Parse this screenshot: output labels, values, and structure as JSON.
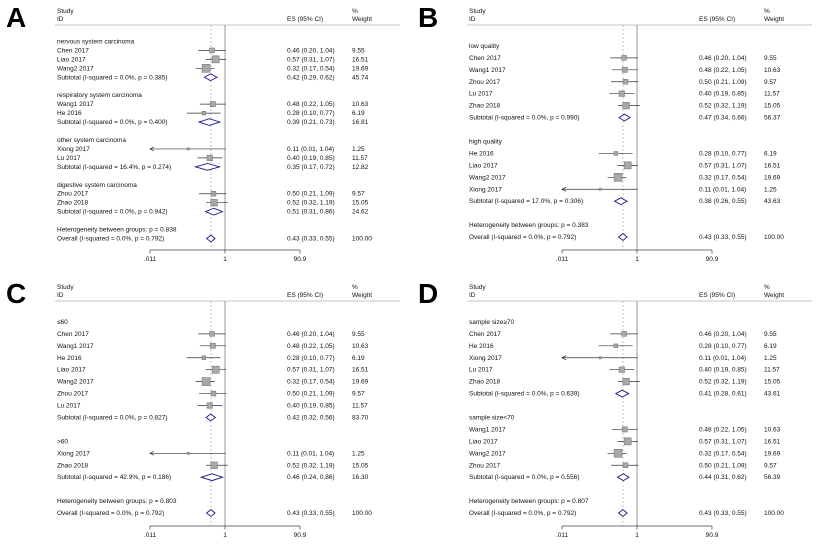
{
  "style": {
    "diamond_stroke": "#1a1a8c",
    "square_fill": "#a8a8a8",
    "square_stroke": "#6e6e6e",
    "ci_line": "#333333",
    "axis_line": "#444444",
    "dashed_line": "#999999",
    "text_color": "#111111",
    "background": "#ffffff"
  },
  "chart_data": [
    {
      "type": "forest",
      "label": "A",
      "columns": {
        "study_line1": "Study",
        "study_line2": "ID",
        "es": "ES (95% CI)",
        "pct": "%",
        "weight": "Weight"
      },
      "axis": {
        "tick_labels": [
          ".011",
          "1",
          "90.9"
        ],
        "tick_values": [
          0.011,
          1,
          90.9
        ],
        "min": 0.011,
        "max": 90.9,
        "null_line": 1,
        "overall_dashed_at": 0.43,
        "log_scale": true
      },
      "rows": [
        {
          "type": "gap"
        },
        {
          "type": "group",
          "label": "nervous system carcinoma"
        },
        {
          "type": "study",
          "label": "Chen 2017",
          "es": 0.46,
          "lo": 0.2,
          "hi": 1.04,
          "ci_text": "0.46 (0.20, 1.04)",
          "weight": 9.55,
          "weight_text": "9.55"
        },
        {
          "type": "study",
          "label": "Liao 2017",
          "es": 0.57,
          "lo": 0.31,
          "hi": 1.07,
          "ci_text": "0.57 (0.31, 1.07)",
          "weight": 16.51,
          "weight_text": "16.51"
        },
        {
          "type": "study",
          "label": "Wang2 2017",
          "es": 0.32,
          "lo": 0.17,
          "hi": 0.54,
          "ci_text": "0.32 (0.17, 0.54)",
          "weight": 19.69,
          "weight_text": "19.69"
        },
        {
          "type": "subtotal",
          "label": "Subtotal  (I-squared = 0.0%, p = 0.385)",
          "es": 0.42,
          "lo": 0.29,
          "hi": 0.62,
          "ci_text": "0.42 (0.29, 0.62)",
          "weight_text": "45.74"
        },
        {
          "type": "gap"
        },
        {
          "type": "group",
          "label": "respiratory system carcinoma"
        },
        {
          "type": "study",
          "label": "Wang1 2017",
          "es": 0.48,
          "lo": 0.22,
          "hi": 1.05,
          "ci_text": "0.48 (0.22, 1.05)",
          "weight": 10.63,
          "weight_text": "10.63"
        },
        {
          "type": "study",
          "label": "He 2016",
          "es": 0.28,
          "lo": 0.1,
          "hi": 0.77,
          "ci_text": "0.28 (0.10, 0.77)",
          "weight": 6.19,
          "weight_text": "6.19"
        },
        {
          "type": "subtotal",
          "label": "Subtotal  (I-squared = 0.0%, p = 0.400)",
          "es": 0.39,
          "lo": 0.21,
          "hi": 0.73,
          "ci_text": "0.39 (0.21, 0.73)",
          "weight_text": "16.81"
        },
        {
          "type": "gap"
        },
        {
          "type": "group",
          "label": "other system carcinoma"
        },
        {
          "type": "study",
          "label": "Xiong 2017",
          "es": 0.11,
          "lo": 0.01,
          "hi": 1.04,
          "ci_text": "0.11 (0.01, 1.04)",
          "weight": 1.25,
          "weight_text": "1.25"
        },
        {
          "type": "study",
          "label": "Lu 2017",
          "es": 0.4,
          "lo": 0.19,
          "hi": 0.85,
          "ci_text": "0.40 (0.19, 0.85)",
          "weight": 11.57,
          "weight_text": "11.57"
        },
        {
          "type": "subtotal",
          "label": "Subtotal  (I-squared = 16.4%, p = 0.274)",
          "es": 0.35,
          "lo": 0.17,
          "hi": 0.72,
          "ci_text": "0.35 (0.17, 0.72)",
          "weight_text": "12.82"
        },
        {
          "type": "gap"
        },
        {
          "type": "group",
          "label": "digestive system carcinoma"
        },
        {
          "type": "study",
          "label": "Zhou 2017",
          "es": 0.5,
          "lo": 0.21,
          "hi": 1.09,
          "ci_text": "0.50 (0.21, 1.09)",
          "weight": 9.57,
          "weight_text": "9.57"
        },
        {
          "type": "study",
          "label": "Zhao 2018",
          "es": 0.52,
          "lo": 0.32,
          "hi": 1.19,
          "ci_text": "0.52 (0.32, 1.19)",
          "weight": 15.05,
          "weight_text": "15.05"
        },
        {
          "type": "subtotal",
          "label": "Subtotal  (I-squared = 0.0%, p = 0.942)",
          "es": 0.51,
          "lo": 0.31,
          "hi": 0.86,
          "ci_text": "0.51 (0.31, 0.86)",
          "weight_text": "24.62"
        },
        {
          "type": "gap"
        },
        {
          "type": "het",
          "label": "Heterogeneity between groups: p = 0.838"
        },
        {
          "type": "overall",
          "label": "Overall  (I-squared = 0.0%, p = 0.792)",
          "es": 0.43,
          "lo": 0.33,
          "hi": 0.55,
          "ci_text": "0.43 (0.33, 0.55)",
          "weight_text": "100.00"
        }
      ]
    },
    {
      "type": "forest",
      "label": "B",
      "columns": {
        "study_line1": "Study",
        "study_line2": "ID",
        "es": "ES (95% CI)",
        "pct": "%",
        "weight": "Weight"
      },
      "axis": {
        "tick_labels": [
          ".011",
          "1",
          "90.9"
        ],
        "tick_values": [
          0.011,
          1,
          90.9
        ],
        "min": 0.011,
        "max": 90.9,
        "null_line": 1,
        "overall_dashed_at": 0.43,
        "log_scale": true
      },
      "rows": [
        {
          "type": "gap"
        },
        {
          "type": "group",
          "label": "low quality"
        },
        {
          "type": "study",
          "label": "Chen 2017",
          "es": 0.46,
          "lo": 0.2,
          "hi": 1.04,
          "ci_text": "0.46 (0.20, 1.04)",
          "weight": 9.55,
          "weight_text": "9.55"
        },
        {
          "type": "study",
          "label": "Wang1 2017",
          "es": 0.48,
          "lo": 0.22,
          "hi": 1.05,
          "ci_text": "0.48 (0.22, 1.05)",
          "weight": 10.63,
          "weight_text": "10.63"
        },
        {
          "type": "study",
          "label": "Zhou 2017",
          "es": 0.5,
          "lo": 0.21,
          "hi": 1.09,
          "ci_text": "0.50 (0.21, 1.09)",
          "weight": 9.57,
          "weight_text": "9.57"
        },
        {
          "type": "study",
          "label": "Lu 2017",
          "es": 0.4,
          "lo": 0.19,
          "hi": 0.85,
          "ci_text": "0.40 (0.19, 0.85)",
          "weight": 11.57,
          "weight_text": "11.57"
        },
        {
          "type": "study",
          "label": "Zhao 2018",
          "es": 0.52,
          "lo": 0.32,
          "hi": 1.19,
          "ci_text": "0.52 (0.32, 1.19)",
          "weight": 15.05,
          "weight_text": "15.05"
        },
        {
          "type": "subtotal",
          "label": "Subtotal  (I-squared = 0.0%, p = 0.990)",
          "es": 0.47,
          "lo": 0.34,
          "hi": 0.66,
          "ci_text": "0.47 (0.34, 0.66)",
          "weight_text": "56.37"
        },
        {
          "type": "gap"
        },
        {
          "type": "group",
          "label": "high quality"
        },
        {
          "type": "study",
          "label": "He 2016",
          "es": 0.28,
          "lo": 0.1,
          "hi": 0.77,
          "ci_text": "0.28 (0.10, 0.77)",
          "weight": 6.19,
          "weight_text": "6.19"
        },
        {
          "type": "study",
          "label": "Liao 2017",
          "es": 0.57,
          "lo": 0.31,
          "hi": 1.07,
          "ci_text": "0.57 (0.31, 1.07)",
          "weight": 16.51,
          "weight_text": "16.51"
        },
        {
          "type": "study",
          "label": "Wang2 2017",
          "es": 0.32,
          "lo": 0.17,
          "hi": 0.54,
          "ci_text": "0.32 (0.17, 0.54)",
          "weight": 19.69,
          "weight_text": "19.69"
        },
        {
          "type": "study",
          "label": "Xiong 2017",
          "es": 0.11,
          "lo": 0.01,
          "hi": 1.04,
          "ci_text": "0.11 (0.01, 1.04)",
          "weight": 1.25,
          "weight_text": "1.25"
        },
        {
          "type": "subtotal",
          "label": "Subtotal  (I-squared = 17.0%, p = 0.306)",
          "es": 0.38,
          "lo": 0.26,
          "hi": 0.55,
          "ci_text": "0.38 (0.26, 0.55)",
          "weight_text": "43.63"
        },
        {
          "type": "gap"
        },
        {
          "type": "het",
          "label": "Heterogeneity between groups: p = 0.383"
        },
        {
          "type": "overall",
          "label": "Overall  (I-squared = 0.0%, p = 0.792)",
          "es": 0.43,
          "lo": 0.33,
          "hi": 0.55,
          "ci_text": "0.43 (0.33, 0.55)",
          "weight_text": "100.00"
        }
      ]
    },
    {
      "type": "forest",
      "label": "C",
      "columns": {
        "study_line1": "Study",
        "study_line2": "ID",
        "es": "ES (95% CI)",
        "pct": "%",
        "weight": "Weight"
      },
      "axis": {
        "tick_labels": [
          ".011",
          "1",
          "90.9"
        ],
        "tick_values": [
          0.011,
          1,
          90.9
        ],
        "min": 0.011,
        "max": 90.9,
        "null_line": 1,
        "overall_dashed_at": 0.43,
        "log_scale": true
      },
      "rows": [
        {
          "type": "gap"
        },
        {
          "type": "group",
          "label": "≤60"
        },
        {
          "type": "study",
          "label": "Chen 2017",
          "es": 0.46,
          "lo": 0.2,
          "hi": 1.04,
          "ci_text": "0.46 (0.20, 1.04)",
          "weight": 9.55,
          "weight_text": "9.55"
        },
        {
          "type": "study",
          "label": "Wang1 2017",
          "es": 0.48,
          "lo": 0.22,
          "hi": 1.05,
          "ci_text": "0.48 (0.22, 1.05)",
          "weight": 10.63,
          "weight_text": "10.63"
        },
        {
          "type": "study",
          "label": "He 2016",
          "es": 0.28,
          "lo": 0.1,
          "hi": 0.77,
          "ci_text": "0.28 (0.10, 0.77)",
          "weight": 6.19,
          "weight_text": "6.19"
        },
        {
          "type": "study",
          "label": "Liao 2017",
          "es": 0.57,
          "lo": 0.31,
          "hi": 1.07,
          "ci_text": "0.57 (0.31, 1.07)",
          "weight": 16.51,
          "weight_text": "16.51"
        },
        {
          "type": "study",
          "label": "Wang2 2017",
          "es": 0.32,
          "lo": 0.17,
          "hi": 0.54,
          "ci_text": "0.32 (0.17, 0.54)",
          "weight": 19.69,
          "weight_text": "19.69"
        },
        {
          "type": "study",
          "label": "Zhou 2017",
          "es": 0.5,
          "lo": 0.21,
          "hi": 1.09,
          "ci_text": "0.50 (0.21, 1.09)",
          "weight": 9.57,
          "weight_text": "9.57"
        },
        {
          "type": "study",
          "label": "Lu 2017",
          "es": 0.4,
          "lo": 0.19,
          "hi": 0.85,
          "ci_text": "0.40 (0.19, 0.85)",
          "weight": 11.57,
          "weight_text": "11.57"
        },
        {
          "type": "subtotal",
          "label": "Subtotal  (I-squared = 0.0%, p = 0.827)",
          "es": 0.42,
          "lo": 0.32,
          "hi": 0.56,
          "ci_text": "0.42 (0.32, 0.56)",
          "weight_text": "83.70"
        },
        {
          "type": "gap"
        },
        {
          "type": "group",
          "label": ">60"
        },
        {
          "type": "study",
          "label": "Xiong 2017",
          "es": 0.11,
          "lo": 0.01,
          "hi": 1.04,
          "ci_text": "0.11 (0.01, 1.04)",
          "weight": 1.25,
          "weight_text": "1.25"
        },
        {
          "type": "study",
          "label": "Zhao 2018",
          "es": 0.52,
          "lo": 0.32,
          "hi": 1.19,
          "ci_text": "0.52 (0.32, 1.19)",
          "weight": 15.05,
          "weight_text": "15.05"
        },
        {
          "type": "subtotal",
          "label": "Subtotal  (I-squared = 42.9%, p = 0.186)",
          "es": 0.46,
          "lo": 0.24,
          "hi": 0.86,
          "ci_text": "0.46 (0.24, 0.86)",
          "weight_text": "16.30"
        },
        {
          "type": "gap"
        },
        {
          "type": "het",
          "label": "Heterogeneity between groups: p = 0.803"
        },
        {
          "type": "overall",
          "label": "Overall  (I-squared = 0.0%, p = 0.792)",
          "es": 0.43,
          "lo": 0.33,
          "hi": 0.55,
          "ci_text": "0.43 (0.33, 0.55)",
          "weight_text": "100.00"
        }
      ]
    },
    {
      "type": "forest",
      "label": "D",
      "columns": {
        "study_line1": "Study",
        "study_line2": "ID",
        "es": "ES (95% CI)",
        "pct": "%",
        "weight": "Weight"
      },
      "axis": {
        "tick_labels": [
          ".011",
          "1",
          "90.9"
        ],
        "tick_values": [
          0.011,
          1,
          90.9
        ],
        "min": 0.011,
        "max": 90.9,
        "null_line": 1,
        "overall_dashed_at": 0.43,
        "log_scale": true
      },
      "rows": [
        {
          "type": "gap"
        },
        {
          "type": "group",
          "label": "sample size≥70"
        },
        {
          "type": "study",
          "label": "Chen 2017",
          "es": 0.46,
          "lo": 0.2,
          "hi": 1.04,
          "ci_text": "0.46 (0.20, 1.04)",
          "weight": 9.55,
          "weight_text": "9.55"
        },
        {
          "type": "study",
          "label": "He 2016",
          "es": 0.28,
          "lo": 0.1,
          "hi": 0.77,
          "ci_text": "0.28 (0.10, 0.77)",
          "weight": 6.19,
          "weight_text": "6.19"
        },
        {
          "type": "study",
          "label": "Xiong 2017",
          "es": 0.11,
          "lo": 0.01,
          "hi": 1.04,
          "ci_text": "0.11 (0.01, 1.04)",
          "weight": 1.25,
          "weight_text": "1.25"
        },
        {
          "type": "study",
          "label": "Lu 2017",
          "es": 0.4,
          "lo": 0.19,
          "hi": 0.85,
          "ci_text": "0.40 (0.19, 0.85)",
          "weight": 11.57,
          "weight_text": "11.57"
        },
        {
          "type": "study",
          "label": "Zhao 2018",
          "es": 0.52,
          "lo": 0.32,
          "hi": 1.19,
          "ci_text": "0.52 (0.32, 1.19)",
          "weight": 15.05,
          "weight_text": "15.05"
        },
        {
          "type": "subtotal",
          "label": "Subtotal  (I-squared = 0.0%, p = 0.639)",
          "es": 0.41,
          "lo": 0.28,
          "hi": 0.61,
          "ci_text": "0.41 (0.28, 0.61)",
          "weight_text": "43.61"
        },
        {
          "type": "gap"
        },
        {
          "type": "group",
          "label": "sample size<70"
        },
        {
          "type": "study",
          "label": "Wang1 2017",
          "es": 0.48,
          "lo": 0.22,
          "hi": 1.05,
          "ci_text": "0.48 (0.22, 1.05)",
          "weight": 10.63,
          "weight_text": "10.63"
        },
        {
          "type": "study",
          "label": "Liao 2017",
          "es": 0.57,
          "lo": 0.31,
          "hi": 1.07,
          "ci_text": "0.57 (0.31, 1.07)",
          "weight": 16.51,
          "weight_text": "16.51"
        },
        {
          "type": "study",
          "label": "Wang2 2017",
          "es": 0.32,
          "lo": 0.17,
          "hi": 0.54,
          "ci_text": "0.32 (0.17, 0.54)",
          "weight": 19.69,
          "weight_text": "19.69"
        },
        {
          "type": "study",
          "label": "Zhou 2017",
          "es": 0.5,
          "lo": 0.21,
          "hi": 1.09,
          "ci_text": "0.50 (0.21, 1.09)",
          "weight": 9.57,
          "weight_text": "9.57"
        },
        {
          "type": "subtotal",
          "label": "Subtotal  (I-squared = 0.0%, p = 0.556)",
          "es": 0.44,
          "lo": 0.31,
          "hi": 0.62,
          "ci_text": "0.44 (0.31, 0.62)",
          "weight_text": "56.39"
        },
        {
          "type": "gap"
        },
        {
          "type": "het",
          "label": "Heterogeneity between groups: p = 0.807"
        },
        {
          "type": "overall",
          "label": "Overall  (I-squared = 0.0%, p = 0.792)",
          "es": 0.43,
          "lo": 0.33,
          "hi": 0.55,
          "ci_text": "0.43 (0.33, 0.55)",
          "weight_text": "100.00"
        }
      ]
    }
  ]
}
